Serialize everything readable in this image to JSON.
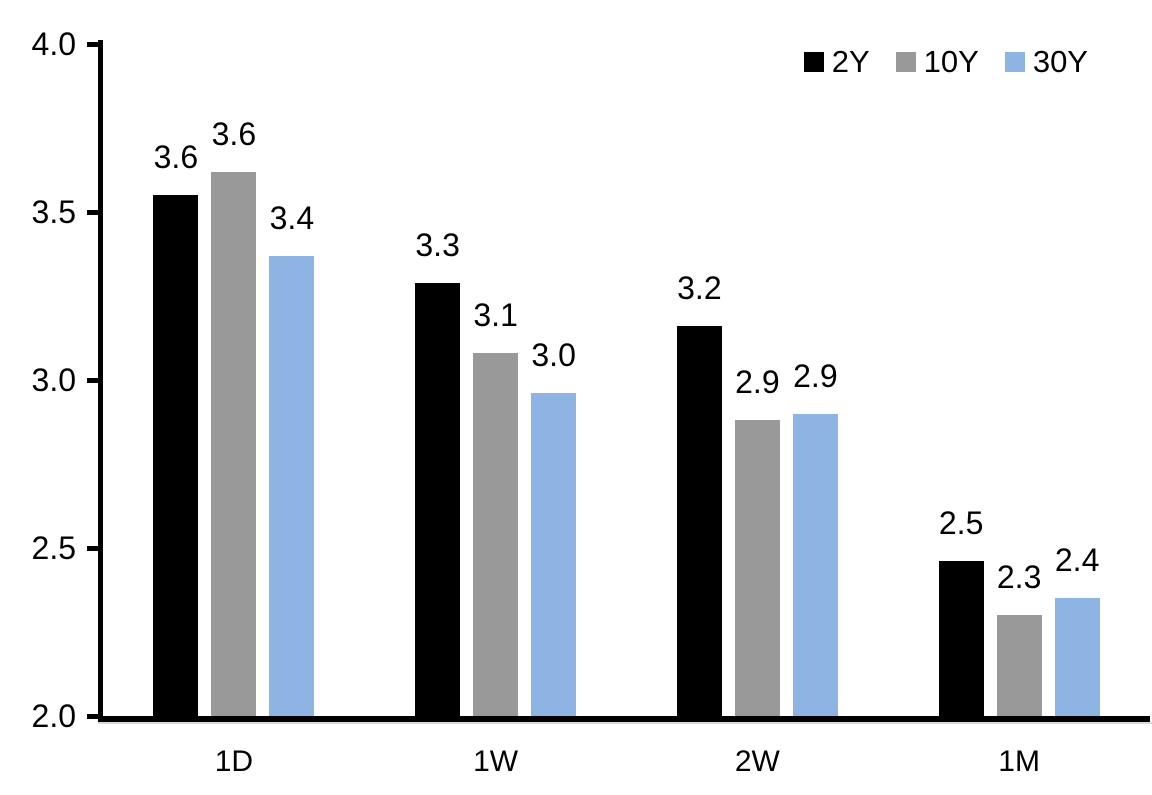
{
  "chart_data": {
    "type": "bar",
    "title": "",
    "xlabel": "",
    "ylabel": "",
    "categories": [
      "1D",
      "1W",
      "2W",
      "1M"
    ],
    "series": [
      {
        "name": "2Y",
        "color": "#000000",
        "labels": [
          "3.6",
          "3.3",
          "3.2",
          "2.5"
        ],
        "values": [
          3.55,
          3.29,
          3.16,
          2.46
        ]
      },
      {
        "name": "10Y",
        "color": "#999999",
        "labels": [
          "3.6",
          "3.1",
          "2.9",
          "2.3"
        ],
        "values": [
          3.62,
          3.08,
          2.88,
          2.3
        ]
      },
      {
        "name": "30Y",
        "color": "#8DB4E2",
        "labels": [
          "3.4",
          "3.0",
          "2.9",
          "2.4"
        ],
        "values": [
          3.37,
          2.96,
          2.9,
          2.35
        ]
      }
    ],
    "ylim": [
      2.0,
      4.0
    ],
    "yticks": [
      "4.0",
      "3.5",
      "3.0",
      "2.5",
      "2.0"
    ],
    "grid": false,
    "legend_position": "top-right",
    "axis_color": "#000000",
    "axis_underline_color": "#d9d9d9"
  }
}
